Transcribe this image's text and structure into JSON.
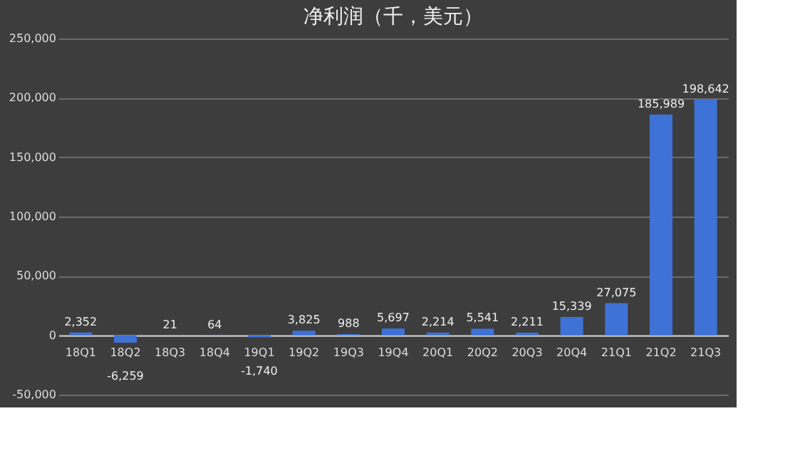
{
  "chart_data": {
    "type": "bar",
    "title": "净利润（千，美元）",
    "categories": [
      "18Q1",
      "18Q2",
      "18Q3",
      "18Q4",
      "19Q1",
      "19Q2",
      "19Q3",
      "19Q4",
      "20Q1",
      "20Q2",
      "20Q3",
      "20Q4",
      "21Q1",
      "21Q2",
      "21Q3"
    ],
    "values": [
      2352,
      -6259,
      21,
      64,
      -1740,
      3825,
      988,
      5697,
      2214,
      5541,
      2211,
      15339,
      27075,
      185989,
      198642
    ],
    "value_labels": [
      "2,352",
      "-6,259",
      "21",
      "64",
      "-1,740",
      "3,825",
      "988",
      "5,697",
      "2,214",
      "5,541",
      "2,211",
      "15,339",
      "27,075",
      "185,989",
      "198,642"
    ],
    "color": "#3f72d6",
    "ylim": [
      -50000,
      250000
    ],
    "yticks": [
      {
        "value": -50000,
        "label": "-50,000"
      },
      0,
      {
        "value": 50000,
        "label": "50,000"
      },
      {
        "value": 100000,
        "label": "100,000"
      },
      {
        "value": 150000,
        "label": "150,000"
      },
      {
        "value": 200000,
        "label": "200,000"
      },
      {
        "value": 250000,
        "label": "250,000"
      }
    ],
    "grid": "y"
  }
}
